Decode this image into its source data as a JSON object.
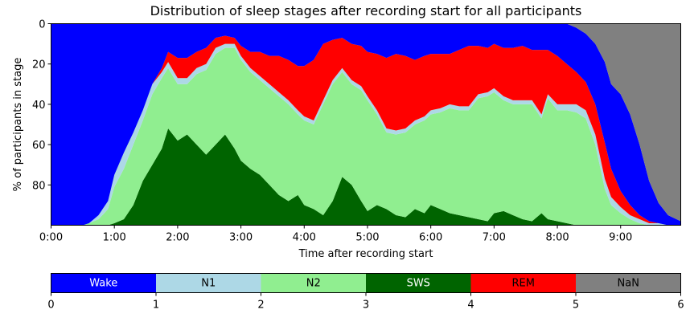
{
  "chart_data": [
    {
      "type": "area",
      "title": "Distribution of sleep stages after recording start for all participants",
      "xlabel": "Time after recording start",
      "ylabel": "% of participants in stage",
      "y_inverted": true,
      "ylim": [
        0,
        100
      ],
      "xlim_hours": [
        0,
        9.95
      ],
      "x_ticks": [
        "0:00",
        "1:00",
        "2:00",
        "3:00",
        "4:00",
        "5:00",
        "6:00",
        "7:00",
        "8:00",
        "9:00"
      ],
      "y_ticks": [
        "0",
        "20",
        "40",
        "60",
        "80"
      ],
      "y_tick_values": [
        0,
        20,
        40,
        60,
        80
      ],
      "stacking_order_from_bottom": [
        "SWS",
        "N2",
        "N1",
        "REM",
        "Wake",
        "NaN"
      ],
      "x_hours": [
        0,
        0.5,
        0.6,
        0.75,
        0.9,
        1.0,
        1.15,
        1.3,
        1.45,
        1.6,
        1.75,
        1.85,
        2.0,
        2.15,
        2.3,
        2.45,
        2.6,
        2.75,
        2.9,
        3.0,
        3.15,
        3.3,
        3.45,
        3.6,
        3.75,
        3.9,
        4.0,
        4.15,
        4.3,
        4.45,
        4.6,
        4.75,
        4.9,
        5.0,
        5.15,
        5.3,
        5.45,
        5.6,
        5.75,
        5.9,
        6.0,
        6.15,
        6.3,
        6.45,
        6.6,
        6.75,
        6.9,
        7.0,
        7.15,
        7.3,
        7.45,
        7.6,
        7.75,
        7.85,
        8.0,
        8.15,
        8.3,
        8.45,
        8.6,
        8.75,
        8.85,
        9.0,
        9.15,
        9.3,
        9.45,
        9.6,
        9.75,
        9.95
      ],
      "series": [
        {
          "name": "SWS",
          "values": [
            0,
            0,
            0,
            0,
            0,
            1,
            3,
            10,
            22,
            30,
            38,
            48,
            42,
            45,
            40,
            35,
            40,
            45,
            38,
            32,
            28,
            25,
            20,
            15,
            12,
            15,
            10,
            8,
            5,
            12,
            24,
            20,
            12,
            7,
            10,
            8,
            5,
            4,
            8,
            6,
            10,
            8,
            6,
            5,
            4,
            3,
            2,
            6,
            7,
            5,
            3,
            2,
            6,
            3,
            2,
            1,
            0,
            0,
            0,
            0,
            0,
            0,
            0,
            0,
            0,
            0,
            0,
            0
          ]
        },
        {
          "name": "N2",
          "values": [
            0,
            0,
            1,
            3,
            8,
            18,
            25,
            30,
            30,
            35,
            35,
            30,
            28,
            25,
            35,
            42,
            45,
            43,
            50,
            50,
            48,
            47,
            48,
            49,
            48,
            40,
            42,
            42,
            55,
            58,
            52,
            50,
            55,
            55,
            45,
            38,
            40,
            42,
            42,
            46,
            45,
            48,
            52,
            52,
            53,
            60,
            62,
            60,
            55,
            55,
            57,
            58,
            47,
            60,
            55,
            56,
            56,
            53,
            40,
            18,
            10,
            6,
            3,
            1,
            0,
            0,
            0,
            0
          ]
        },
        {
          "name": "N1",
          "values": [
            0,
            0,
            0,
            2,
            4,
            6,
            8,
            6,
            5,
            5,
            3,
            3,
            3,
            3,
            3,
            3,
            3,
            2,
            2,
            2,
            2,
            2,
            2,
            2,
            2,
            2,
            2,
            2,
            2,
            2,
            2,
            2,
            2,
            2,
            2,
            2,
            2,
            2,
            2,
            2,
            2,
            2,
            2,
            2,
            2,
            2,
            2,
            2,
            2,
            2,
            2,
            2,
            2,
            2,
            3,
            3,
            4,
            4,
            5,
            5,
            4,
            3,
            2,
            2,
            1,
            1,
            0,
            0
          ]
        },
        {
          "name": "REM",
          "values": [
            0,
            0,
            0,
            0,
            0,
            0,
            0,
            0,
            0,
            0,
            2,
            5,
            10,
            10,
            8,
            8,
            5,
            4,
            3,
            5,
            8,
            12,
            14,
            18,
            20,
            22,
            25,
            30,
            28,
            20,
            15,
            18,
            20,
            22,
            28,
            35,
            38,
            36,
            30,
            30,
            28,
            27,
            25,
            28,
            30,
            24,
            22,
            22,
            24,
            26,
            27,
            25,
            32,
            22,
            24,
            20,
            16,
            14,
            15,
            18,
            14,
            8,
            5,
            2,
            1,
            0,
            0,
            0
          ]
        },
        {
          "name": "Wake",
          "values": [
            100,
            100,
            99,
            95,
            88,
            75,
            64,
            54,
            43,
            30,
            22,
            14,
            17,
            17,
            14,
            12,
            7,
            6,
            7,
            11,
            14,
            14,
            16,
            16,
            18,
            21,
            21,
            18,
            10,
            8,
            7,
            10,
            11,
            14,
            15,
            17,
            15,
            16,
            18,
            16,
            15,
            15,
            15,
            13,
            11,
            11,
            12,
            10,
            12,
            12,
            11,
            13,
            13,
            13,
            16,
            20,
            22,
            24,
            30,
            40,
            42,
            48,
            45,
            35,
            20,
            10,
            5,
            2
          ]
        },
        {
          "name": "NaN",
          "values": [
            0,
            0,
            0,
            0,
            0,
            0,
            0,
            0,
            0,
            0,
            0,
            0,
            0,
            0,
            0,
            0,
            0,
            0,
            0,
            0,
            0,
            0,
            0,
            0,
            0,
            0,
            0,
            0,
            0,
            0,
            0,
            0,
            0,
            0,
            0,
            0,
            0,
            0,
            0,
            0,
            0,
            0,
            0,
            0,
            0,
            0,
            0,
            0,
            0,
            0,
            0,
            0,
            0,
            0,
            0,
            0,
            2,
            5,
            10,
            19,
            30,
            35,
            45,
            60,
            78,
            89,
            95,
            98
          ]
        }
      ],
      "colors": {
        "Wake": "#0000ff",
        "N1": "#add8e6",
        "N2": "#90ee90",
        "SWS": "#006400",
        "REM": "#ff0000",
        "NaN": "#808080"
      }
    },
    {
      "type": "bar",
      "role": "colorbar",
      "categories": [
        "Wake",
        "N1",
        "N2",
        "SWS",
        "REM",
        "NaN"
      ],
      "label_colors": [
        "#ffffff",
        "#000000",
        "#000000",
        "#ffffff",
        "#000000",
        "#000000"
      ],
      "xlim": [
        0,
        6
      ],
      "x_ticks": [
        "0",
        "1",
        "2",
        "3",
        "4",
        "5",
        "6"
      ],
      "x_tick_values": [
        0,
        1,
        2,
        3,
        4,
        5,
        6
      ]
    }
  ]
}
